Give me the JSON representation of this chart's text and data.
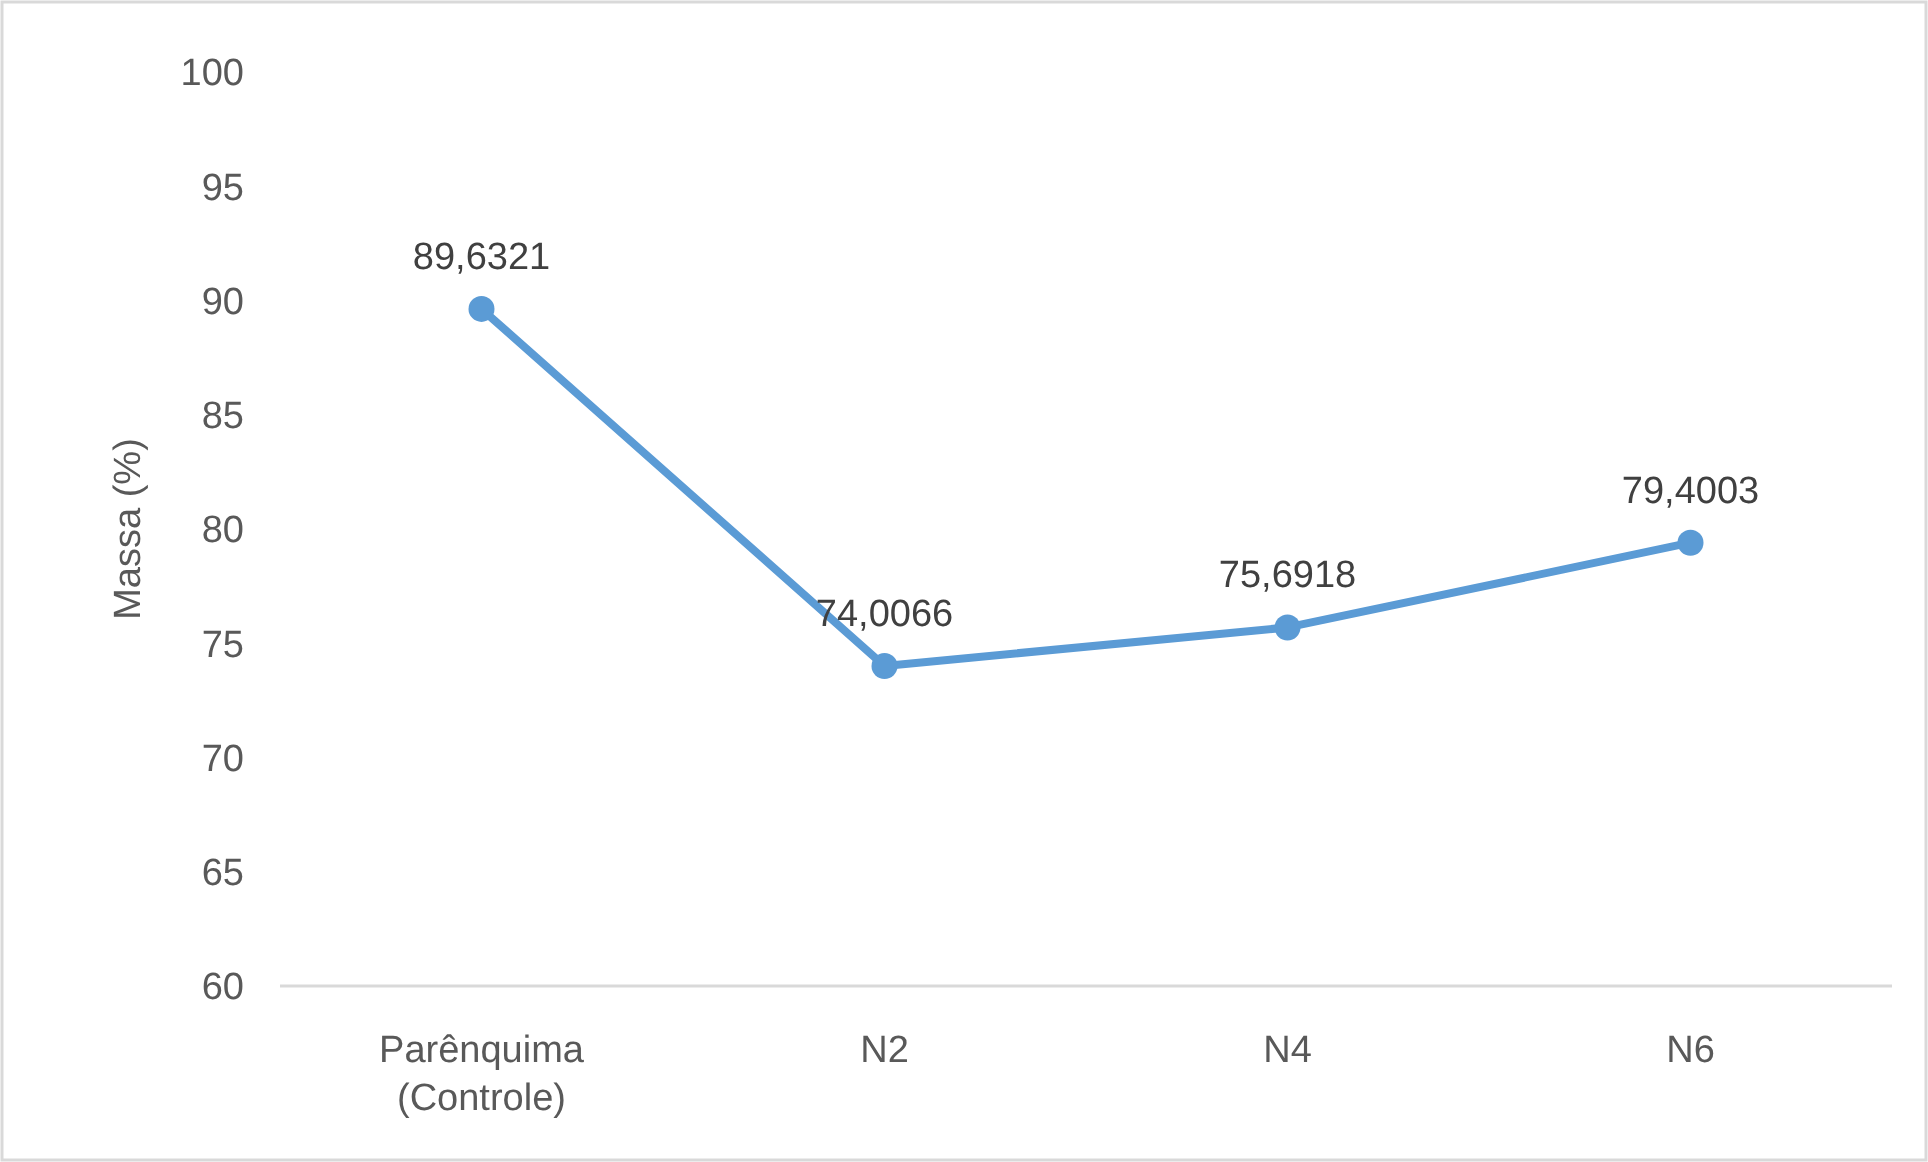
{
  "chart_data": {
    "type": "line",
    "ylabel": "Massa (%)",
    "categories": [
      "Parênquima (Controle)",
      "N2",
      "N4",
      "N6"
    ],
    "series": [
      {
        "color": "#5b9bd5",
        "values": [
          89.6321,
          74.0066,
          75.6918,
          79.4003
        ],
        "value_labels": [
          "89,6321",
          "74,0066",
          "75,6918",
          "79,4003"
        ]
      }
    ],
    "ylim": [
      60,
      100
    ],
    "yticks": [
      60,
      65,
      70,
      75,
      80,
      85,
      90,
      95,
      100
    ],
    "marker": "circle",
    "line_style": "solid",
    "grid": false
  }
}
